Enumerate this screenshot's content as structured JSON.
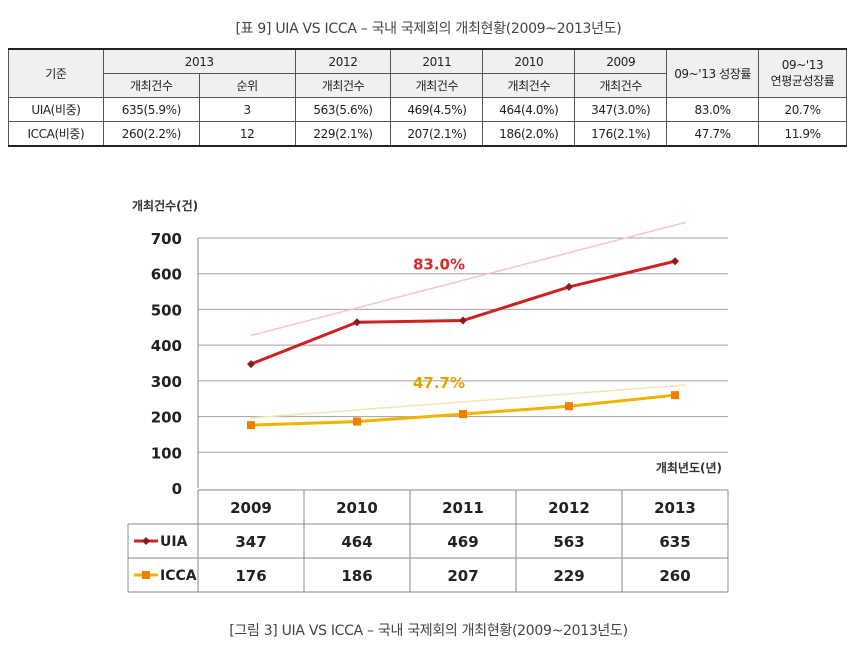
{
  "table": {
    "caption": "[표 9] UIA VS ICCA – 국내 국제회의 개최현황(2009~2013년도)",
    "header_basis": "기준",
    "years": [
      "2013",
      "2012",
      "2011",
      "2010",
      "2009"
    ],
    "sub_count": "개최건수",
    "sub_rank": "순위",
    "growth_header": "09~'13 성장률",
    "cagr_header_line1": "09~'13",
    "cagr_header_line2": "연평균성장률",
    "rows": [
      {
        "label": "UIA(비중)",
        "y2013": "635(5.9%)",
        "rank": "3",
        "y2012": "563(5.6%)",
        "y2011": "469(4.5%)",
        "y2010": "464(4.0%)",
        "y2009": "347(3.0%)",
        "growth": "83.0%",
        "cagr": "20.7%"
      },
      {
        "label": "ICCA(비중)",
        "y2013": "260(2.2%)",
        "rank": "12",
        "y2012": "229(2.1%)",
        "y2011": "207(2.1%)",
        "y2010": "186(2.0%)",
        "y2009": "176(2.1%)",
        "growth": "47.7%",
        "cagr": "11.9%"
      }
    ]
  },
  "chart_data": {
    "type": "line",
    "ylabel": "개최건수(건)",
    "xlabel": "개최년도(년)",
    "categories": [
      "2009",
      "2010",
      "2011",
      "2012",
      "2013"
    ],
    "ylim": [
      0,
      700
    ],
    "yticks": [
      0,
      100,
      200,
      300,
      400,
      500,
      600,
      700
    ],
    "grid": true,
    "series": [
      {
        "name": "UIA",
        "values": [
          347,
          464,
          469,
          563,
          635
        ],
        "color": "#cc2222",
        "marker": "diamond"
      },
      {
        "name": "ICCA",
        "values": [
          176,
          186,
          207,
          229,
          260
        ],
        "color": "#f0b400",
        "marker": "square"
      }
    ],
    "annotations": [
      {
        "text": "83.0%",
        "series": "UIA",
        "color": "#d62b2b"
      },
      {
        "text": "47.7%",
        "series": "ICCA",
        "color": "#e6a100"
      }
    ],
    "data_table": true
  },
  "figure": {
    "caption": "[그림 3] UIA VS ICCA – 국내 국제회의 개최현황(2009~2013년도)"
  }
}
